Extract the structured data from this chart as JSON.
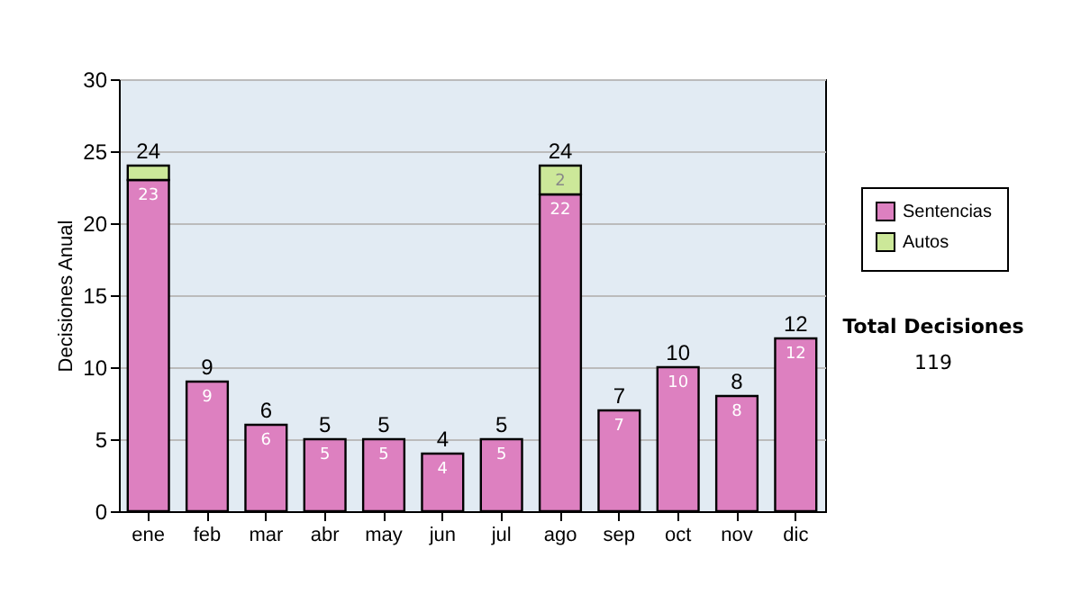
{
  "chart_data": {
    "type": "bar",
    "stacked": true,
    "ylabel": "Decisiones Anual",
    "categories": [
      "ene",
      "feb",
      "mar",
      "abr",
      "may",
      "jun",
      "jul",
      "ago",
      "sep",
      "oct",
      "nov",
      "dic"
    ],
    "series": [
      {
        "name": "Sentencias",
        "color": "#dd80c0",
        "values": [
          23,
          9,
          6,
          5,
          5,
          4,
          5,
          22,
          7,
          10,
          8,
          12
        ],
        "value_labels": [
          "23",
          "9",
          "6",
          "5",
          "5",
          "4",
          "5",
          "22",
          "7",
          "10",
          "8",
          "12"
        ]
      },
      {
        "name": "Autos",
        "color": "#cce899",
        "values": [
          1,
          null,
          null,
          null,
          null,
          null,
          null,
          2,
          null,
          null,
          null,
          null
        ],
        "value_labels": [
          null,
          null,
          null,
          null,
          null,
          null,
          null,
          "2",
          null,
          null,
          null,
          null
        ]
      }
    ],
    "totals": [
      "24",
      "9",
      "6",
      "5",
      "5",
      "4",
      "5",
      "24",
      "7",
      "10",
      "8",
      "12"
    ],
    "ylim": [
      0,
      30
    ],
    "yticks": [
      0,
      5,
      10,
      15,
      20,
      25,
      30
    ],
    "grid": "y",
    "legend": "right",
    "annotations": [
      "Total Decisiones",
      "119"
    ]
  }
}
